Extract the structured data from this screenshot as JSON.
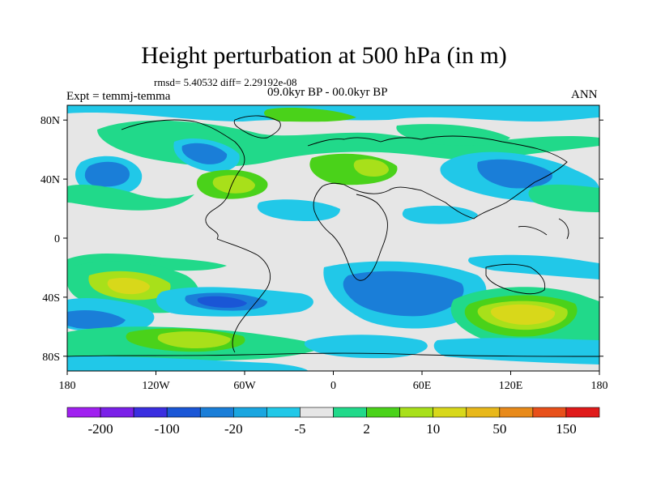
{
  "title": "Height perturbation at 500 hPa (in m)",
  "stats": "rmsd= 5.40532 diff= 2.29192e-08",
  "expt": "Expt = temmj-temma",
  "period": "09.0kyr BP - 00.0kyr BP",
  "season": "ANN",
  "lat_labels": [
    "80N",
    "40N",
    "0",
    "40S",
    "80S"
  ],
  "lon_labels": [
    "180",
    "120W",
    "60W",
    "0",
    "60E",
    "120E",
    "180"
  ],
  "colorbar": {
    "colors": [
      "#a020f0",
      "#7a20e8",
      "#3a2ee0",
      "#1a56d6",
      "#1a7ed8",
      "#1aa6e0",
      "#21c8e8",
      "#e6e6e6",
      "#21d98a",
      "#4ad21a",
      "#a8e01a",
      "#d8d81a",
      "#e8b81a",
      "#e88a1a",
      "#e8501a",
      "#e01a1a"
    ],
    "labels": [
      "-200",
      "-100",
      "-20",
      "-5",
      "2",
      "10",
      "50",
      "150"
    ]
  }
}
